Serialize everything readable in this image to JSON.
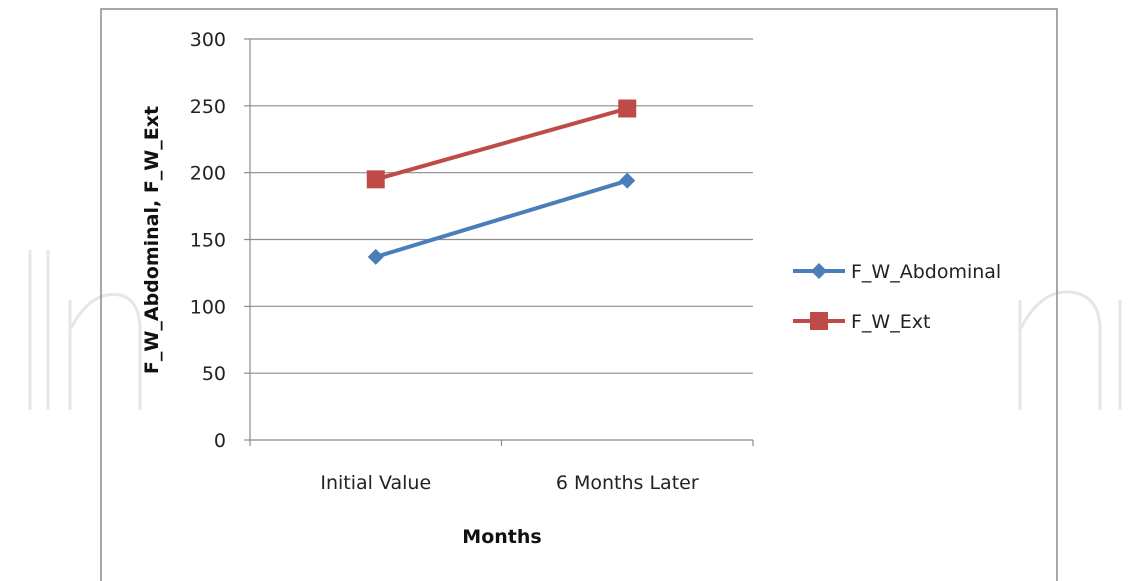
{
  "chart_data": {
    "type": "line",
    "title": "",
    "xlabel": "Months",
    "ylabel": "F_W_Abdominal, F_W_Ext",
    "categories": [
      "Initial Value",
      "6 Months Later"
    ],
    "ylim": [
      0,
      300
    ],
    "yticks": [
      0,
      50,
      100,
      150,
      200,
      250,
      300
    ],
    "grid": true,
    "legend": "right",
    "series": [
      {
        "name": "F_W_Abdominal",
        "values": [
          137,
          194
        ],
        "color": "#4a7ebb",
        "marker": "diamond"
      },
      {
        "name": "F_W_Ext",
        "values": [
          195,
          248
        ],
        "color": "#be4b48",
        "marker": "square"
      }
    ]
  },
  "watermark": "IntechOpen"
}
